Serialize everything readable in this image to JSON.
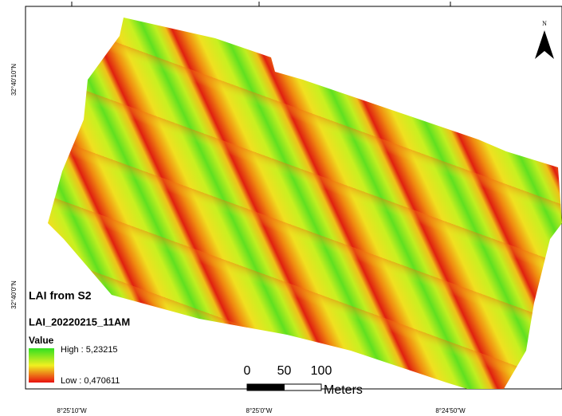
{
  "map": {
    "north_label": "N",
    "lat_labels": [
      "32°40'10\"N",
      "32°40'0\"N"
    ],
    "lon_labels": [
      "8°25'10\"W",
      "8°25'0\"W",
      "8°24'50\"W"
    ],
    "legend": {
      "title": "LAI from S2",
      "layer": "LAI_20220215_11AM",
      "field": "Value",
      "high": "High : 5,23215",
      "low": "Low : 0,470611"
    },
    "scale_bar": {
      "ticks": [
        0,
        50,
        100
      ],
      "unit": "Meters"
    }
  }
}
